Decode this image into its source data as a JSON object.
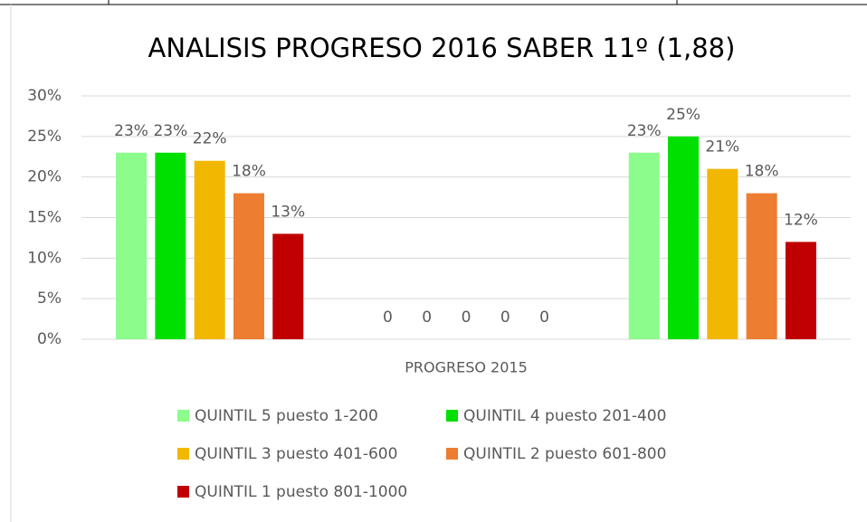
{
  "chart_data": {
    "type": "bar",
    "title": "ANALISIS PROGRESO 2016 SABER 11º (1,88)",
    "categories": [
      null,
      "PROGRESO 2015",
      null
    ],
    "series": [
      {
        "name": "QUINTIL 5 puesto 1-200",
        "color": "#8cfc8c",
        "values": [
          23,
          0,
          23
        ],
        "value_labels": [
          "23%",
          "0",
          "23%"
        ]
      },
      {
        "name": "QUINTIL 4 puesto 201-400",
        "color": "#00e000",
        "values": [
          23,
          0,
          25
        ],
        "value_labels": [
          "23%",
          "0",
          "25%"
        ]
      },
      {
        "name": "QUINTIL 3 puesto 401-600",
        "color": "#f2b700",
        "values": [
          22,
          0,
          21
        ],
        "value_labels": [
          "22%",
          "0",
          "21%"
        ]
      },
      {
        "name": "QUINTIL 2 puesto 601-800",
        "color": "#ed7d31",
        "values": [
          18,
          0,
          18
        ],
        "value_labels": [
          "18%",
          "0",
          "18%"
        ]
      },
      {
        "name": "QUINTIL 1 puesto 801-1000",
        "color": "#c00000",
        "values": [
          13,
          0,
          12
        ],
        "value_labels": [
          "13%",
          "0",
          "12%"
        ]
      }
    ],
    "ylim": [
      0,
      30
    ],
    "yticks": [
      {
        "value": 0,
        "label": "0%"
      },
      {
        "value": 5,
        "label": "5%"
      },
      {
        "value": 10,
        "label": "10%"
      },
      {
        "value": 15,
        "label": "15%"
      },
      {
        "value": 20,
        "label": "20%"
      },
      {
        "value": 25,
        "label": "25%"
      },
      {
        "value": 30,
        "label": "30%"
      }
    ],
    "grid": true
  }
}
